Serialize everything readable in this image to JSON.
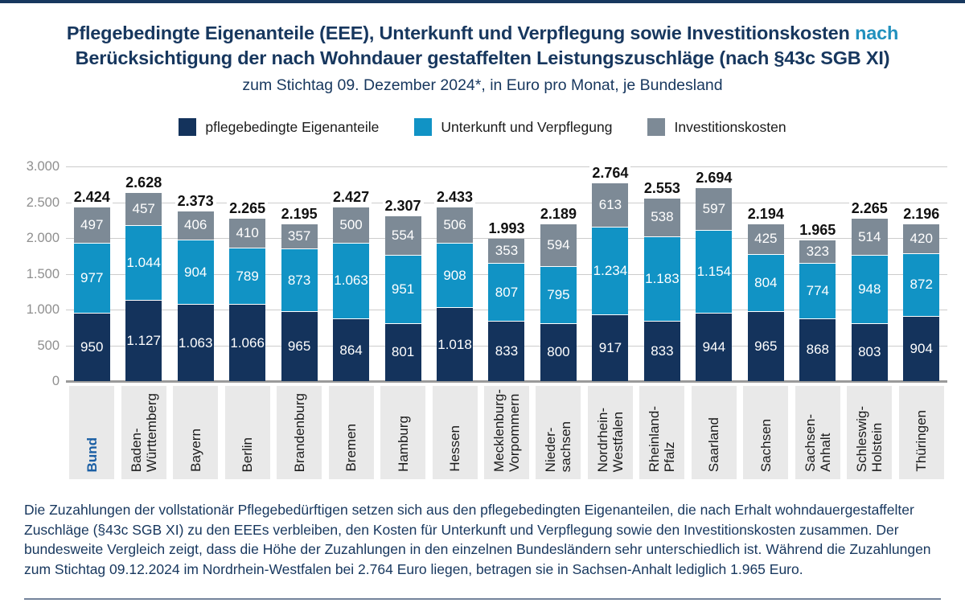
{
  "title": {
    "line1_main": "Pflegebedingte Eigenanteile (EEE), Unterkunft und Verpflegung sowie Investitionskosten",
    "line1_highlight": "nach",
    "line2": "Berücksichtigung der nach Wohndauer gestaffelten Leistungszuschläge (nach §43c SGB XI)",
    "subtitle": "zum Stichtag 09. Dezember 2024*, in Euro pro Monat, je Bundesland"
  },
  "legend": [
    {
      "label": "pflegebedingte Eigenanteile",
      "color": "#14335c"
    },
    {
      "label": "Unterkunft und Verpflegung",
      "color": "#1193c5"
    },
    {
      "label": "Investitionskosten",
      "color": "#7d8a96"
    }
  ],
  "chart_data": {
    "type": "bar",
    "stacked": true,
    "ylim": [
      0,
      3000
    ],
    "grid": true,
    "y_ticks": [
      0,
      500,
      1000,
      1500,
      2000,
      2500,
      3000
    ],
    "y_tick_labels": [
      "0",
      "500",
      "1.000",
      "1.500",
      "2.000",
      "2.500",
      "3.000"
    ],
    "categories": [
      "Bund",
      "Baden-Württemberg",
      "Bayern",
      "Berlin",
      "Brandenburg",
      "Bremen",
      "Hamburg",
      "Hessen",
      "Mecklenburg-Vorpommern",
      "Niedersachsen",
      "Nordrhein-Westfalen",
      "Rheinland-Pfalz",
      "Saarland",
      "Sachsen",
      "Sachsen-Anhalt",
      "Schleswig-Holstein",
      "Thüringen"
    ],
    "category_lines": [
      [
        "Bund"
      ],
      [
        "Baden-",
        "Württemberg"
      ],
      [
        "Bayern"
      ],
      [
        "Berlin"
      ],
      [
        "Brandenburg"
      ],
      [
        "Bremen"
      ],
      [
        "Hamburg"
      ],
      [
        "Hessen"
      ],
      [
        "Mecklenburg-",
        "Vorpommern"
      ],
      [
        "Nieder-",
        "sachsen"
      ],
      [
        "Nordrhein-",
        "Westfalen"
      ],
      [
        "Rheinland-",
        "Pfalz"
      ],
      [
        "Saarland"
      ],
      [
        "Sachsen"
      ],
      [
        "Sachsen-",
        "Anhalt"
      ],
      [
        "Schleswig-",
        "Holstein"
      ],
      [
        "Thüringen"
      ]
    ],
    "category_emphasis_index": 0,
    "series": [
      {
        "name": "pflegebedingte Eigenanteile",
        "color": "#14335c",
        "values": [
          950,
          1127,
          1063,
          1066,
          965,
          864,
          801,
          1018,
          833,
          800,
          917,
          833,
          944,
          965,
          868,
          803,
          904
        ],
        "labels": [
          "950",
          "1.127",
          "1.063",
          "1.066",
          "965",
          "864",
          "801",
          "1.018",
          "833",
          "800",
          "917",
          "833",
          "944",
          "965",
          "868",
          "803",
          "904"
        ]
      },
      {
        "name": "Unterkunft und Verpflegung",
        "color": "#1193c5",
        "values": [
          977,
          1044,
          904,
          789,
          873,
          1063,
          951,
          908,
          807,
          795,
          1234,
          1183,
          1154,
          804,
          774,
          948,
          872
        ],
        "labels": [
          "977",
          "1.044",
          "904",
          "789",
          "873",
          "1.063",
          "951",
          "908",
          "807",
          "795",
          "1.234",
          "1.183",
          "1.154",
          "804",
          "774",
          "948",
          "872"
        ]
      },
      {
        "name": "Investitionskosten",
        "color": "#7d8a96",
        "values": [
          497,
          457,
          406,
          410,
          357,
          500,
          554,
          506,
          353,
          594,
          613,
          538,
          597,
          425,
          323,
          514,
          420
        ],
        "labels": [
          "497",
          "457",
          "406",
          "410",
          "357",
          "500",
          "554",
          "506",
          "353",
          "594",
          "613",
          "538",
          "597",
          "425",
          "323",
          "514",
          "420"
        ]
      }
    ],
    "totals": [
      2424,
      2628,
      2373,
      2265,
      2195,
      2427,
      2307,
      2433,
      1993,
      2189,
      2764,
      2553,
      2694,
      2194,
      1965,
      2265,
      2196
    ],
    "total_labels": [
      "2.424",
      "2.628",
      "2.373",
      "2.265",
      "2.195",
      "2.427",
      "2.307",
      "2.433",
      "1.993",
      "2.189",
      "2.764",
      "2.553",
      "2.694",
      "2.194",
      "1.965",
      "2.265",
      "2.196"
    ]
  },
  "footer": {
    "text": "Die Zuzahlungen der vollstationär Pflegebedürftigen setzen sich aus den pflegebedingten Eigenanteilen, die nach Erhalt wohndauergestaffelter Zuschläge (§43c SGB XI) zu den EEEs verbleiben, den Kosten für Unterkunft und Verpflegung sowie den Investitionskosten zusammen. Der bundesweite Vergleich zeigt, dass die Höhe der Zuzahlungen in den einzelnen Bundesländern sehr unterschiedlich ist. Während die Zuzahlungen zum Stichtag 09.12.2024 im Nordrhein-Westfalen bei 2.764 Euro liegen, betragen sie in Sachsen-Anhalt lediglich 1.965 Euro."
  }
}
